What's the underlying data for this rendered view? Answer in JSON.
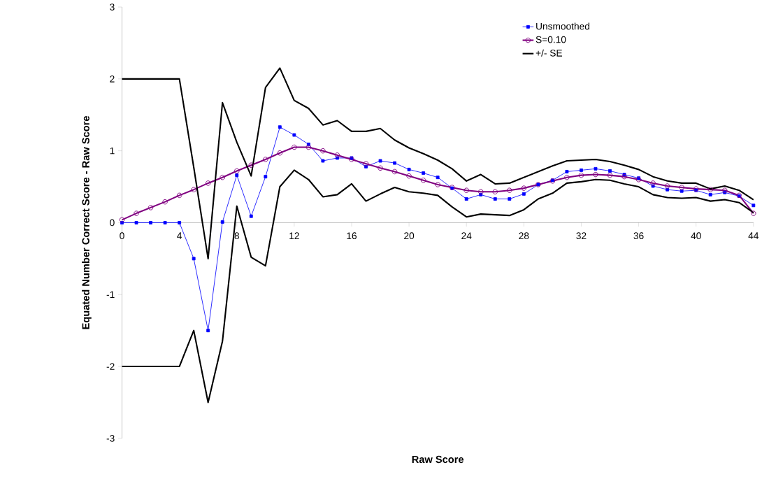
{
  "chart_data": {
    "type": "line",
    "xlabel": "Raw Score",
    "ylabel": "Equated Number Correct Score - Raw Score",
    "x": [
      0,
      1,
      2,
      3,
      4,
      5,
      6,
      7,
      8,
      9,
      10,
      11,
      12,
      13,
      14,
      15,
      16,
      17,
      18,
      19,
      20,
      21,
      22,
      23,
      24,
      25,
      26,
      27,
      28,
      29,
      30,
      31,
      32,
      33,
      34,
      35,
      36,
      37,
      38,
      39,
      40,
      41,
      42,
      43,
      44
    ],
    "xlim": [
      0,
      44
    ],
    "xticks": [
      0,
      4,
      8,
      12,
      16,
      20,
      24,
      28,
      32,
      36,
      40,
      44
    ],
    "ylim": [
      -3,
      3
    ],
    "yticks": [
      -3,
      -2,
      -1,
      0,
      1,
      2,
      3
    ],
    "grid": false,
    "legend": "top right",
    "series": [
      {
        "name": "Unsmoothed",
        "color": "#0000ff",
        "marker": "square",
        "values": [
          0,
          0,
          0,
          0,
          0,
          -0.5,
          -1.5,
          0.01,
          0.66,
          0.09,
          0.64,
          1.33,
          1.22,
          1.09,
          0.86,
          0.9,
          0.9,
          0.78,
          0.86,
          0.83,
          0.74,
          0.69,
          0.63,
          0.48,
          0.33,
          0.39,
          0.33,
          0.33,
          0.4,
          0.53,
          0.59,
          0.71,
          0.73,
          0.75,
          0.72,
          0.67,
          0.62,
          0.51,
          0.46,
          0.44,
          0.45,
          0.39,
          0.42,
          0.37,
          0.24
        ]
      },
      {
        "name": "S=0.10",
        "color": "#800080",
        "marker": "circle",
        "values": [
          0.04,
          0.13,
          0.21,
          0.29,
          0.38,
          0.46,
          0.55,
          0.63,
          0.72,
          0.8,
          0.88,
          0.97,
          1.05,
          1.05,
          1.0,
          0.94,
          0.88,
          0.82,
          0.76,
          0.71,
          0.65,
          0.59,
          0.53,
          0.49,
          0.45,
          0.43,
          0.43,
          0.45,
          0.48,
          0.53,
          0.58,
          0.63,
          0.66,
          0.67,
          0.66,
          0.64,
          0.6,
          0.55,
          0.51,
          0.49,
          0.47,
          0.46,
          0.45,
          0.38,
          0.13
        ]
      },
      {
        "name": "+/- SE",
        "color": "#000000",
        "marker": "none",
        "values": [
          2,
          2,
          2,
          2,
          2,
          0.77,
          -0.5,
          1.67,
          1.12,
          0.65,
          1.88,
          2.15,
          1.7,
          1.59,
          1.36,
          1.42,
          1.27,
          1.27,
          1.31,
          1.15,
          1.04,
          0.96,
          0.87,
          0.75,
          0.58,
          0.67,
          0.54,
          0.55,
          0.63,
          0.71,
          0.79,
          0.86,
          0.87,
          0.88,
          0.85,
          0.8,
          0.74,
          0.64,
          0.58,
          0.55,
          0.55,
          0.47,
          0.51,
          0.45,
          0.32
        ]
      },
      {
        "color": "#000000",
        "marker": "none",
        "values": [
          -2,
          -2,
          -2,
          -2,
          -2,
          -1.5,
          -2.5,
          -1.65,
          0.23,
          -0.48,
          -0.6,
          0.5,
          0.73,
          0.6,
          0.36,
          0.39,
          0.54,
          0.3,
          0.4,
          0.49,
          0.43,
          0.41,
          0.38,
          0.22,
          0.08,
          0.12,
          0.11,
          0.1,
          0.18,
          0.33,
          0.41,
          0.55,
          0.57,
          0.6,
          0.59,
          0.54,
          0.5,
          0.39,
          0.35,
          0.34,
          0.35,
          0.3,
          0.32,
          0.28,
          0.14
        ]
      }
    ]
  }
}
